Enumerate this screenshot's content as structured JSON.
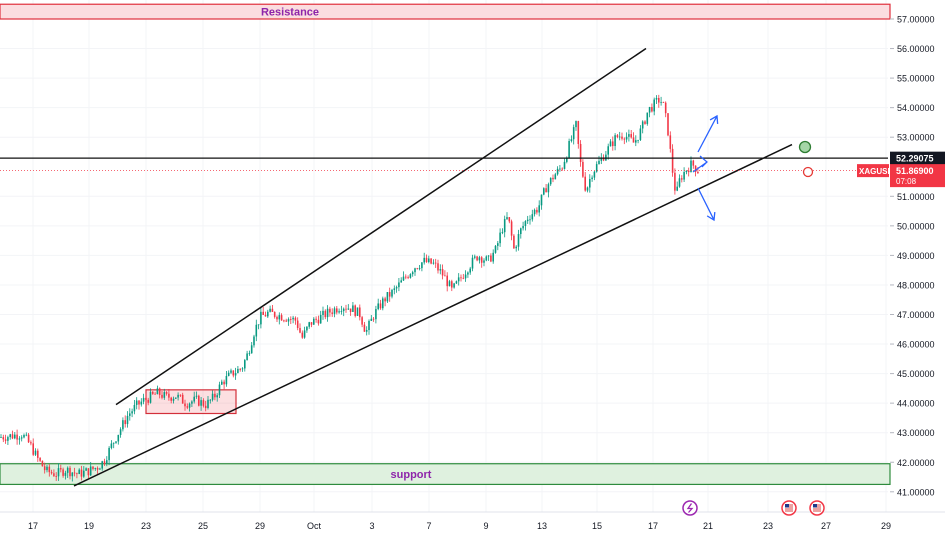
{
  "chart_data": {
    "type": "candlestick",
    "symbol": "XAGUSD",
    "current_price": "51.86900",
    "countdown": "07:08",
    "level_line": "52.29075",
    "x_ticks": [
      "17",
      "19",
      "23",
      "25",
      "29",
      "Oct",
      "3",
      "7",
      "9",
      "13",
      "15",
      "17",
      "21",
      "23",
      "27",
      "29"
    ],
    "y_ticks": [
      "57.00000",
      "56.00000",
      "55.00000",
      "54.00000",
      "53.00000",
      "51.00000",
      "50.00000",
      "49.00000",
      "48.00000",
      "47.00000",
      "46.00000",
      "45.00000",
      "44.00000",
      "43.00000",
      "42.00000",
      "41.00000"
    ],
    "ylim": [
      40.8,
      57.55
    ],
    "zones": [
      {
        "label": "Resistance",
        "from": 57.0,
        "to": 57.5
      },
      {
        "label": "support",
        "from": 41.25,
        "to": 41.95
      }
    ],
    "price_path": [
      [
        0,
        42.85
      ],
      [
        12,
        42.9
      ],
      [
        22,
        42.95
      ],
      [
        30,
        42.6
      ],
      [
        38,
        42.1
      ],
      [
        46,
        41.7
      ],
      [
        56,
        41.6
      ],
      [
        66,
        41.75
      ],
      [
        78,
        41.6
      ],
      [
        88,
        41.7
      ],
      [
        98,
        41.85
      ],
      [
        104,
        42.05
      ],
      [
        112,
        42.6
      ],
      [
        120,
        43.1
      ],
      [
        128,
        43.6
      ],
      [
        136,
        43.9
      ],
      [
        144,
        44.1
      ],
      [
        150,
        44.2
      ],
      [
        158,
        44.35
      ],
      [
        166,
        44.2
      ],
      [
        176,
        44.25
      ],
      [
        186,
        44.0
      ],
      [
        196,
        44.1
      ],
      [
        206,
        43.95
      ],
      [
        214,
        44.2
      ],
      [
        222,
        44.7
      ],
      [
        232,
        45.0
      ],
      [
        242,
        45.2
      ],
      [
        248,
        45.7
      ],
      [
        254,
        46.4
      ],
      [
        260,
        46.9
      ],
      [
        268,
        47.05
      ],
      [
        276,
        47.0
      ],
      [
        286,
        46.9
      ],
      [
        296,
        46.8
      ],
      [
        302,
        46.2
      ],
      [
        310,
        46.7
      ],
      [
        320,
        46.9
      ],
      [
        330,
        47.1
      ],
      [
        342,
        47.3
      ],
      [
        352,
        47.2
      ],
      [
        360,
        47.0
      ],
      [
        366,
        46.4
      ],
      [
        374,
        47.0
      ],
      [
        384,
        47.5
      ],
      [
        394,
        47.8
      ],
      [
        404,
        48.2
      ],
      [
        414,
        48.6
      ],
      [
        424,
        48.8
      ],
      [
        434,
        48.7
      ],
      [
        444,
        48.3
      ],
      [
        452,
        47.8
      ],
      [
        460,
        48.2
      ],
      [
        468,
        48.6
      ],
      [
        478,
        49.0
      ],
      [
        488,
        48.8
      ],
      [
        496,
        49.2
      ],
      [
        502,
        49.9
      ],
      [
        508,
        50.3
      ],
      [
        514,
        49.2
      ],
      [
        520,
        49.8
      ],
      [
        528,
        50.3
      ],
      [
        538,
        50.6
      ],
      [
        546,
        51.3
      ],
      [
        554,
        51.7
      ],
      [
        562,
        52.0
      ],
      [
        570,
        52.8
      ],
      [
        576,
        53.4
      ],
      [
        580,
        52.2
      ],
      [
        586,
        51.2
      ],
      [
        592,
        51.8
      ],
      [
        600,
        52.2
      ],
      [
        608,
        52.6
      ],
      [
        616,
        53.0
      ],
      [
        624,
        53.1
      ],
      [
        634,
        52.8
      ],
      [
        642,
        53.3
      ],
      [
        648,
        53.9
      ],
      [
        654,
        54.1
      ],
      [
        660,
        54.3
      ],
      [
        664,
        54.0
      ],
      [
        668,
        53.2
      ],
      [
        672,
        52.0
      ],
      [
        676,
        51.0
      ],
      [
        680,
        51.6
      ],
      [
        686,
        51.9
      ],
      [
        692,
        52.1
      ],
      [
        698,
        51.87
      ]
    ],
    "icon_positions": [
      690,
      789,
      817
    ]
  }
}
